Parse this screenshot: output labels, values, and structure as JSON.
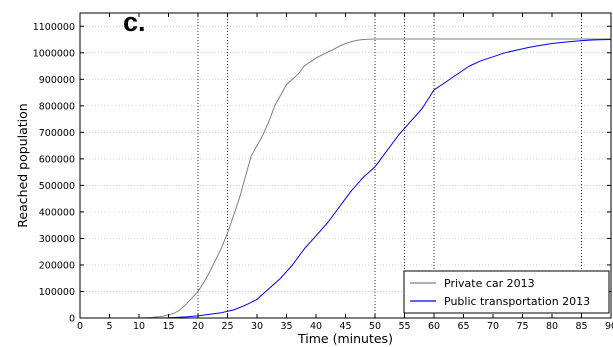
{
  "figure": {
    "panel_label": "c."
  },
  "chart_data": {
    "type": "line",
    "title": "",
    "xlabel": "Time (minutes)",
    "ylabel": "Reached population",
    "xlim": [
      0,
      90
    ],
    "ylim": [
      0,
      1150000
    ],
    "xticks": [
      0,
      5,
      10,
      15,
      20,
      25,
      30,
      35,
      40,
      45,
      50,
      55,
      60,
      65,
      70,
      75,
      80,
      85,
      90
    ],
    "yticks": [
      0,
      100000,
      200000,
      300000,
      400000,
      500000,
      600000,
      700000,
      800000,
      900000,
      1000000,
      1100000
    ],
    "grid": true,
    "legend_position": "lower-right",
    "vertical_reference_lines": [
      20,
      25,
      50,
      55,
      60,
      85
    ],
    "series": [
      {
        "name": "Private car 2013",
        "color": "#808080",
        "x": [
          0,
          10,
          12,
          14,
          16,
          17,
          18,
          19,
          20,
          21,
          22,
          23,
          24,
          25,
          26,
          27,
          28,
          29,
          30,
          31,
          32,
          33,
          34,
          35,
          36,
          37,
          38,
          39,
          40,
          41,
          42,
          43,
          44,
          45,
          46,
          47,
          48,
          49,
          50,
          55,
          60,
          65,
          70,
          75,
          80,
          85,
          90
        ],
        "y": [
          0,
          0,
          2000,
          6000,
          18000,
          32000,
          52000,
          76000,
          100000,
          135000,
          175000,
          220000,
          265000,
          320000,
          385000,
          450000,
          530000,
          610000,
          650000,
          690000,
          740000,
          800000,
          840000,
          880000,
          900000,
          920000,
          950000,
          965000,
          980000,
          992000,
          1003000,
          1013000,
          1025000,
          1035000,
          1042000,
          1047000,
          1050000,
          1051000,
          1052000,
          1052000,
          1052000,
          1052000,
          1052000,
          1052000,
          1052000,
          1052000,
          1052000
        ]
      },
      {
        "name": "Public transportation 2013",
        "color": "#0000ff",
        "x": [
          0,
          14,
          16,
          18,
          20,
          22,
          24,
          26,
          28,
          30,
          32,
          34,
          36,
          38,
          40,
          42,
          44,
          46,
          48,
          50,
          52,
          54,
          56,
          58,
          60,
          62,
          64,
          66,
          68,
          70,
          72,
          74,
          76,
          78,
          80,
          82,
          84,
          86,
          88,
          90
        ],
        "y": [
          0,
          0,
          2000,
          4000,
          8000,
          14000,
          20000,
          30000,
          48000,
          70000,
          110000,
          150000,
          200000,
          260000,
          310000,
          360000,
          420000,
          480000,
          530000,
          570000,
          630000,
          690000,
          740000,
          790000,
          860000,
          890000,
          920000,
          950000,
          970000,
          985000,
          1000000,
          1010000,
          1020000,
          1028000,
          1035000,
          1040000,
          1044000,
          1047000,
          1049000,
          1050000
        ]
      }
    ]
  }
}
